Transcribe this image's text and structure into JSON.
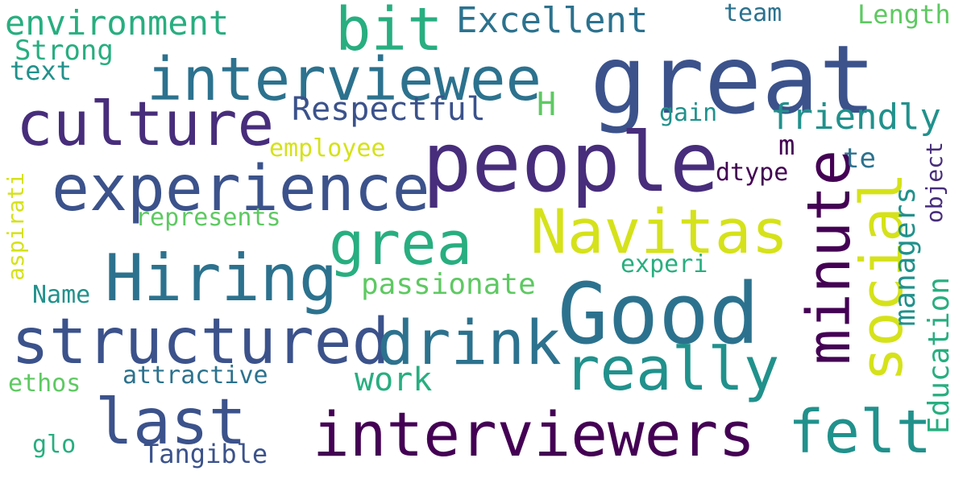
{
  "words": {
    "great": "great",
    "people": "people",
    "interviewee": "interviewee",
    "culture": "culture",
    "experience": "experience",
    "Good": "Good",
    "Navitas": "Navitas",
    "Hiring": "Hiring",
    "structured": "structured",
    "drink": "drink",
    "really": "really",
    "interviewers": "interviewers",
    "last": "last",
    "felt": "felt",
    "minute": "minute",
    "social": "social",
    "grea": "grea",
    "bit": "bit",
    "environment": "environment",
    "Excellent": "Excellent",
    "Respectful": "Respectful",
    "friendly": "friendly",
    "managers": "managers",
    "Education": "Education",
    "object": "object",
    "passionate": "passionate",
    "work": "work",
    "attractive": "attractive",
    "Tangible": "Tangible",
    "represents": "represents",
    "employee": "employee",
    "dtype": "dtype",
    "experi": "experi",
    "gain": "gain",
    "team": "team",
    "Length": "Length",
    "Strong": "Strong",
    "text": "text",
    "Name": "Name",
    "ethos": "ethos",
    "glo": "glo",
    "aspirati": "aspirati",
    "H": "H",
    "m": "m",
    "te": "te"
  }
}
